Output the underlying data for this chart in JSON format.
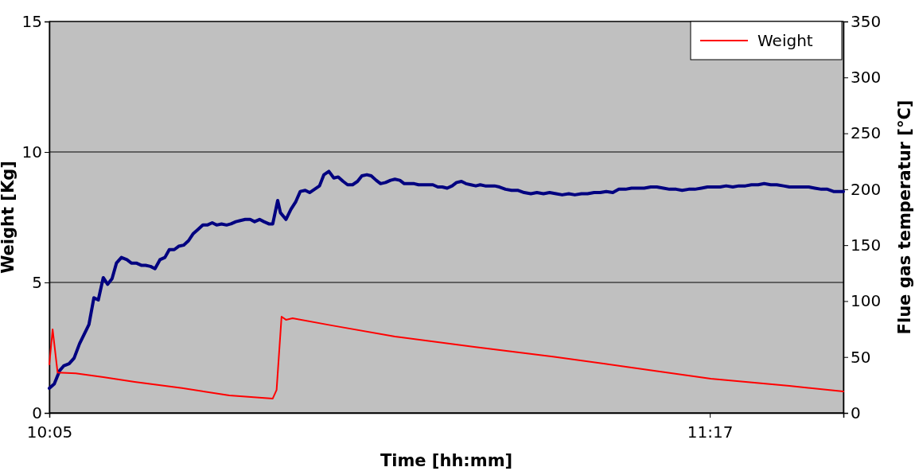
{
  "chart_data": {
    "type": "line",
    "xlabel": "Time [hh:mm]",
    "ylabel": "Weight [Kg]",
    "y2label": "Flue gas temperatur [°C]",
    "xlim": [
      10.083,
      11.526
    ],
    "xticks": [
      {
        "value": 10.083,
        "label": "10:05"
      },
      {
        "value": 11.2833,
        "label": "11:17"
      }
    ],
    "ylim": [
      0,
      15
    ],
    "yticks": [
      0,
      5,
      10,
      15
    ],
    "y2lim": [
      0,
      350
    ],
    "y2ticks": [
      0,
      50,
      100,
      150,
      200,
      250,
      300,
      350
    ],
    "grid": "y",
    "legend": "top right",
    "series": [
      {
        "name": "Weight",
        "color": "#ff0000",
        "x": [
          10.083,
          10.089,
          10.098,
          10.131,
          10.181,
          10.238,
          10.324,
          10.41,
          10.489,
          10.496,
          10.505,
          10.513,
          10.525,
          10.597,
          10.711,
          10.855,
          10.998,
          11.141,
          11.285,
          11.428,
          11.526
        ],
        "values": [
          1.86,
          3.2,
          1.55,
          1.52,
          1.37,
          1.19,
          0.95,
          0.67,
          0.55,
          0.88,
          3.69,
          3.57,
          3.63,
          3.35,
          2.93,
          2.53,
          2.16,
          1.74,
          1.31,
          1.04,
          0.82
        ]
      },
      {
        "color": "#000080",
        "axis": "y2",
        "x": [
          10.083,
          10.092,
          10.102,
          10.109,
          10.119,
          10.128,
          10.138,
          10.146,
          10.155,
          10.164,
          10.172,
          10.181,
          10.189,
          10.197,
          10.205,
          10.214,
          10.224,
          10.232,
          10.241,
          10.25,
          10.258,
          10.267,
          10.275,
          10.284,
          10.293,
          10.301,
          10.31,
          10.318,
          10.327,
          10.336,
          10.344,
          10.353,
          10.362,
          10.37,
          10.379,
          10.387,
          10.396,
          10.405,
          10.413,
          10.422,
          10.43,
          10.439,
          10.448,
          10.456,
          10.465,
          10.473,
          10.482,
          10.489,
          10.498,
          10.503,
          10.513,
          10.522,
          10.531,
          10.539,
          10.548,
          10.556,
          10.565,
          10.574,
          10.582,
          10.591,
          10.6,
          10.608,
          10.617,
          10.625,
          10.634,
          10.643,
          10.651,
          10.66,
          10.668,
          10.677,
          10.685,
          10.694,
          10.703,
          10.711,
          10.72,
          10.728,
          10.737,
          10.746,
          10.754,
          10.763,
          10.771,
          10.78,
          10.789,
          10.797,
          10.806,
          10.815,
          10.823,
          10.832,
          10.84,
          10.849,
          10.858,
          10.866,
          10.875,
          10.883,
          10.892,
          10.901,
          10.912,
          10.923,
          10.935,
          10.946,
          10.958,
          10.969,
          10.981,
          10.992,
          11.004,
          11.015,
          11.027,
          11.038,
          11.05,
          11.061,
          11.073,
          11.084,
          11.095,
          11.107,
          11.118,
          11.13,
          11.141,
          11.153,
          11.164,
          11.176,
          11.187,
          11.199,
          11.21,
          11.222,
          11.233,
          11.245,
          11.256,
          11.268,
          11.279,
          11.291,
          11.302,
          11.313,
          11.325,
          11.336,
          11.348,
          11.359,
          11.371,
          11.382,
          11.394,
          11.405,
          11.417,
          11.428,
          11.44,
          11.451,
          11.463,
          11.474,
          11.486,
          11.497,
          11.508,
          11.526
        ],
        "values": [
          22,
          26,
          38,
          42,
          44,
          49,
          62,
          70,
          79,
          103,
          101,
          121,
          115,
          120,
          134,
          139,
          137,
          134,
          134,
          132,
          132,
          131,
          129,
          137,
          139,
          146,
          146,
          149,
          150,
          154,
          160,
          164,
          168,
          168,
          170,
          168,
          169,
          168,
          169,
          171,
          172,
          173,
          173,
          171,
          173,
          171,
          169,
          169,
          190,
          179,
          173,
          182,
          189,
          198,
          199,
          197,
          200,
          203,
          213,
          216,
          210,
          211,
          207,
          204,
          204,
          207,
          212,
          213,
          212,
          208,
          205,
          206,
          208,
          209,
          208,
          205,
          205,
          205,
          204,
          204,
          204,
          204,
          202,
          202,
          201,
          203,
          206,
          207,
          205,
          204,
          203,
          204,
          203,
          203,
          203,
          202,
          200,
          199,
          199,
          197,
          196,
          197,
          196,
          197,
          196,
          195,
          196,
          195,
          196,
          196,
          197,
          197,
          198,
          197,
          200,
          200,
          201,
          201,
          201,
          202,
          202,
          201,
          200,
          200,
          199,
          200,
          200,
          201,
          202,
          202,
          202,
          203,
          202,
          203,
          203,
          204,
          204,
          205,
          204,
          204,
          203,
          202,
          202,
          202,
          202,
          201,
          200,
          200,
          198,
          198
        ]
      }
    ]
  }
}
